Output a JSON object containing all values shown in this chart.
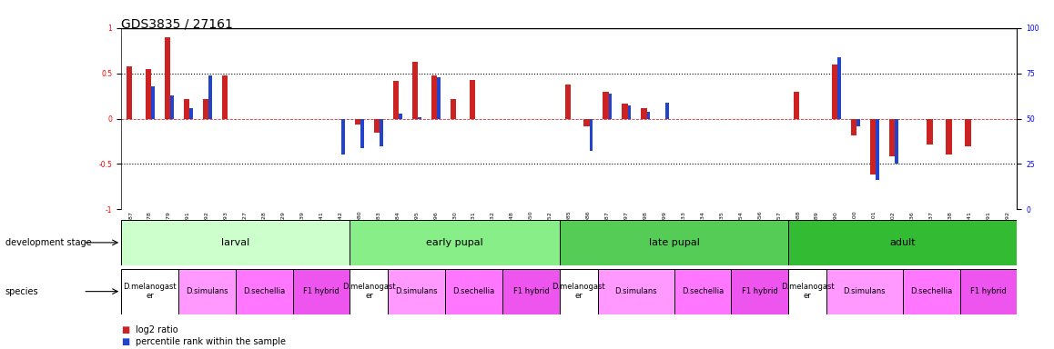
{
  "title": "GDS3835 / 27161",
  "samples": [
    "GSM435987",
    "GSM436078",
    "GSM436079",
    "GSM436091",
    "GSM436092",
    "GSM436093",
    "GSM436827",
    "GSM436828",
    "GSM436829",
    "GSM436839",
    "GSM436841",
    "GSM436842",
    "GSM436080",
    "GSM436083",
    "GSM436084",
    "GSM436095",
    "GSM436096",
    "GSM436830",
    "GSM436831",
    "GSM436832",
    "GSM436848",
    "GSM436850",
    "GSM436852",
    "GSM436085",
    "GSM436086",
    "GSM436087",
    "GSM436097",
    "GSM436098",
    "GSM436099",
    "GSM436833",
    "GSM436834",
    "GSM436835",
    "GSM436854",
    "GSM436856",
    "GSM436857",
    "GSM436088",
    "GSM436089",
    "GSM436090",
    "GSM436100",
    "GSM436101",
    "GSM436102",
    "GSM436836",
    "GSM436837",
    "GSM436838",
    "GSM437041",
    "GSM437091",
    "GSM437092"
  ],
  "log2_ratio": [
    0.58,
    0.55,
    0.9,
    0.22,
    0.22,
    0.48,
    0.0,
    0.0,
    0.0,
    0.0,
    0.0,
    0.0,
    -0.06,
    -0.15,
    0.42,
    0.63,
    0.48,
    0.22,
    0.43,
    0.0,
    0.0,
    0.0,
    0.0,
    0.38,
    -0.08,
    0.3,
    0.17,
    0.12,
    0.0,
    0.0,
    0.0,
    0.0,
    0.0,
    0.0,
    0.0,
    0.3,
    0.0,
    0.6,
    -0.18,
    -0.62,
    -0.42,
    0.0,
    -0.28,
    -0.4,
    -0.3,
    0.0,
    0.0
  ],
  "pct_rank": [
    0.0,
    0.36,
    0.26,
    0.12,
    0.48,
    0.0,
    0.0,
    0.0,
    0.0,
    0.0,
    0.0,
    -0.4,
    -0.32,
    -0.3,
    0.06,
    0.02,
    0.46,
    0.0,
    0.0,
    0.0,
    0.0,
    0.0,
    0.0,
    0.0,
    -0.35,
    0.28,
    0.15,
    0.08,
    0.18,
    0.0,
    0.0,
    0.0,
    0.0,
    0.0,
    0.0,
    0.0,
    0.0,
    0.68,
    -0.08,
    -0.68,
    -0.5,
    0.0,
    0.0,
    0.0,
    0.0,
    0.0,
    0.0
  ],
  "development_stages": [
    {
      "label": "larval",
      "start": 0,
      "end": 12,
      "color": "#ccffcc"
    },
    {
      "label": "early pupal",
      "start": 12,
      "end": 23,
      "color": "#88ee88"
    },
    {
      "label": "late pupal",
      "start": 23,
      "end": 35,
      "color": "#55cc55"
    },
    {
      "label": "adult",
      "start": 35,
      "end": 47,
      "color": "#33bb33"
    }
  ],
  "species_groups": [
    {
      "label": "D.melanogast\ner",
      "start": 0,
      "end": 3,
      "color": "#ffffff"
    },
    {
      "label": "D.simulans",
      "start": 3,
      "end": 6,
      "color": "#ff99ff"
    },
    {
      "label": "D.sechellia",
      "start": 6,
      "end": 9,
      "color": "#ff77ff"
    },
    {
      "label": "F1 hybrid",
      "start": 9,
      "end": 12,
      "color": "#ee55ee"
    },
    {
      "label": "D.melanogast\ner",
      "start": 12,
      "end": 14,
      "color": "#ffffff"
    },
    {
      "label": "D.simulans",
      "start": 14,
      "end": 17,
      "color": "#ff99ff"
    },
    {
      "label": "D.sechellia",
      "start": 17,
      "end": 20,
      "color": "#ff77ff"
    },
    {
      "label": "F1 hybrid",
      "start": 20,
      "end": 23,
      "color": "#ee55ee"
    },
    {
      "label": "D.melanogast\ner",
      "start": 23,
      "end": 25,
      "color": "#ffffff"
    },
    {
      "label": "D.simulans",
      "start": 25,
      "end": 29,
      "color": "#ff99ff"
    },
    {
      "label": "D.sechellia",
      "start": 29,
      "end": 32,
      "color": "#ff77ff"
    },
    {
      "label": "F1 hybrid",
      "start": 32,
      "end": 35,
      "color": "#ee55ee"
    },
    {
      "label": "D.melanogast\ner",
      "start": 35,
      "end": 37,
      "color": "#ffffff"
    },
    {
      "label": "D.simulans",
      "start": 37,
      "end": 41,
      "color": "#ff99ff"
    },
    {
      "label": "D.sechellia",
      "start": 41,
      "end": 44,
      "color": "#ff77ff"
    },
    {
      "label": "F1 hybrid",
      "start": 44,
      "end": 47,
      "color": "#ee55ee"
    }
  ],
  "ylim": [
    -1.0,
    1.0
  ],
  "yticks_left": [
    -1.0,
    -0.5,
    0.0,
    0.5,
    1.0
  ],
  "yticks_right": [
    0,
    25,
    50,
    75,
    100
  ],
  "hlines": [
    -0.5,
    0.5
  ],
  "bar_color_red": "#cc2222",
  "bar_color_blue": "#2244cc",
  "zero_line_color": "#cc3333",
  "title_fontsize": 10,
  "tick_fontsize": 5.5,
  "label_fontsize": 7,
  "annotation_fontsize": 7,
  "sample_fontsize": 4.5,
  "stage_fontsize": 8,
  "species_fontsize": 6
}
